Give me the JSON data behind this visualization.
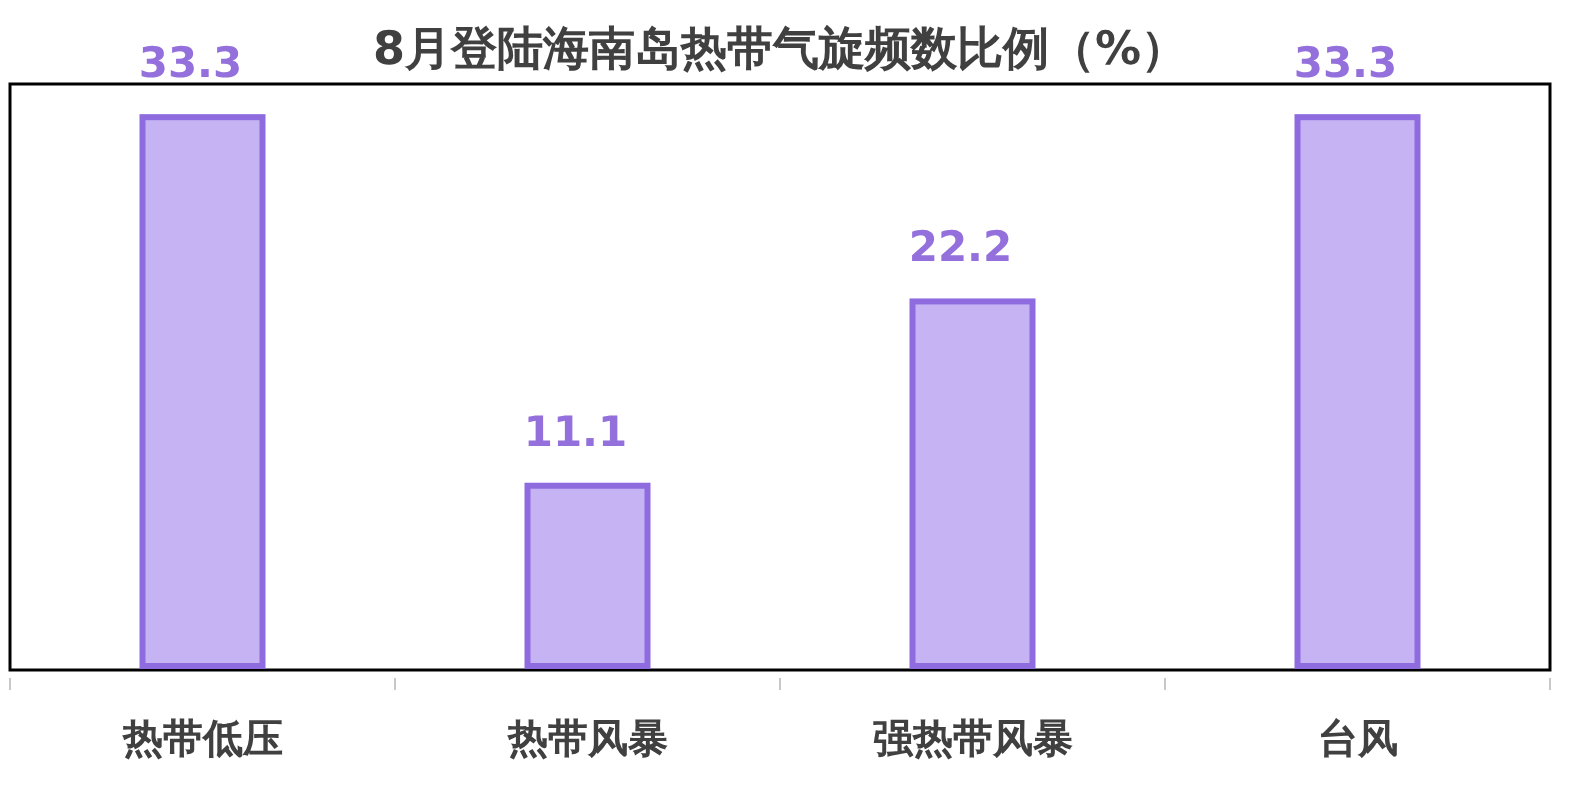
{
  "chart_data": {
    "type": "bar",
    "title": "8月登陆海南岛热带气旋频数比例（%）",
    "categories": [
      "热带低压",
      "热带风暴",
      "强热带风暴",
      "台风"
    ],
    "values": [
      33.3,
      11.1,
      22.2,
      33.3
    ],
    "color": "#c5b3f3",
    "data_labels": true
  }
}
